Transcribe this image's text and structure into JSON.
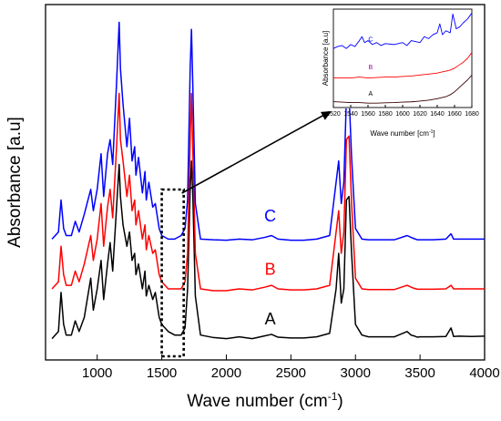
{
  "chart_data": [
    {
      "type": "line",
      "title": "",
      "xlabel": "Wave number (cm",
      "xlabel_sup": "-1",
      "xlabel_close": ")",
      "ylabel": "Absorbance [a.u]",
      "xlim": [
        600,
        4000
      ],
      "xticks": [
        1000,
        1500,
        2000,
        2500,
        3000,
        3500,
        4000
      ],
      "ylim": [
        0,
        1
      ],
      "grid": false,
      "legend": "none",
      "highlight_region_x": [
        1500,
        1670
      ],
      "series": [
        {
          "name": "A",
          "color": "#000000",
          "baseline": 0.055,
          "x": [
            650,
            700,
            720,
            740,
            760,
            800,
            830,
            860,
            900,
            950,
            970,
            1000,
            1030,
            1050,
            1080,
            1100,
            1120,
            1150,
            1170,
            1180,
            1200,
            1230,
            1250,
            1270,
            1290,
            1300,
            1320,
            1350,
            1370,
            1380,
            1400,
            1430,
            1450,
            1480,
            1500,
            1550,
            1600,
            1650,
            1680,
            1700,
            1720,
            1730,
            1740,
            1760,
            1800,
            1900,
            2000,
            2100,
            2200,
            2300,
            2350,
            2400,
            2500,
            2600,
            2700,
            2800,
            2850,
            2870,
            2890,
            2910,
            2930,
            2950,
            2970,
            3000,
            3050,
            3100,
            3200,
            3300,
            3400,
            3430,
            3450,
            3480,
            3500,
            3600,
            3700,
            3740,
            3760,
            3800,
            3900,
            4000
          ],
          "y": [
            0.06,
            0.08,
            0.19,
            0.1,
            0.07,
            0.07,
            0.11,
            0.08,
            0.12,
            0.23,
            0.14,
            0.2,
            0.28,
            0.17,
            0.27,
            0.33,
            0.25,
            0.43,
            0.55,
            0.46,
            0.38,
            0.32,
            0.36,
            0.28,
            0.3,
            0.24,
            0.27,
            0.2,
            0.25,
            0.18,
            0.21,
            0.17,
            0.19,
            0.12,
            0.1,
            0.08,
            0.07,
            0.07,
            0.09,
            0.2,
            0.48,
            0.56,
            0.47,
            0.18,
            0.07,
            0.063,
            0.06,
            0.065,
            0.06,
            0.068,
            0.072,
            0.064,
            0.062,
            0.062,
            0.065,
            0.075,
            0.2,
            0.3,
            0.16,
            0.2,
            0.45,
            0.46,
            0.3,
            0.1,
            0.07,
            0.065,
            0.065,
            0.065,
            0.08,
            0.07,
            0.068,
            0.064,
            0.065,
            0.065,
            0.066,
            0.09,
            0.066,
            0.067,
            0.066,
            0.067
          ]
        },
        {
          "name": "B",
          "color": "#ff0000",
          "baseline": 0.19,
          "x": [
            650,
            700,
            720,
            740,
            760,
            800,
            830,
            860,
            900,
            950,
            970,
            1000,
            1030,
            1050,
            1080,
            1100,
            1120,
            1150,
            1170,
            1180,
            1200,
            1230,
            1250,
            1270,
            1290,
            1300,
            1320,
            1350,
            1370,
            1380,
            1400,
            1430,
            1450,
            1480,
            1500,
            1550,
            1600,
            1650,
            1680,
            1700,
            1720,
            1730,
            1740,
            1760,
            1800,
            1900,
            2000,
            2100,
            2200,
            2300,
            2350,
            2400,
            2500,
            2600,
            2700,
            2800,
            2850,
            2870,
            2890,
            2910,
            2930,
            2950,
            2970,
            3000,
            3050,
            3100,
            3200,
            3300,
            3400,
            3430,
            3450,
            3480,
            3500,
            3600,
            3700,
            3740,
            3760,
            3800,
            3900,
            4000
          ],
          "y": [
            0.2,
            0.22,
            0.32,
            0.24,
            0.21,
            0.21,
            0.25,
            0.22,
            0.27,
            0.35,
            0.28,
            0.34,
            0.44,
            0.32,
            0.43,
            0.48,
            0.4,
            0.6,
            0.75,
            0.62,
            0.56,
            0.46,
            0.52,
            0.42,
            0.45,
            0.38,
            0.42,
            0.34,
            0.38,
            0.31,
            0.35,
            0.3,
            0.31,
            0.24,
            0.22,
            0.2,
            0.2,
            0.2,
            0.22,
            0.3,
            0.62,
            0.75,
            0.6,
            0.3,
            0.2,
            0.195,
            0.195,
            0.2,
            0.197,
            0.205,
            0.21,
            0.2,
            0.197,
            0.197,
            0.2,
            0.21,
            0.36,
            0.42,
            0.3,
            0.36,
            0.62,
            0.63,
            0.44,
            0.23,
            0.2,
            0.198,
            0.198,
            0.198,
            0.21,
            0.205,
            0.202,
            0.199,
            0.199,
            0.199,
            0.2,
            0.21,
            0.2,
            0.2,
            0.2,
            0.2
          ]
        },
        {
          "name": "C",
          "color": "#0000ff",
          "baseline": 0.33,
          "x": [
            650,
            700,
            720,
            740,
            760,
            800,
            830,
            860,
            900,
            950,
            970,
            1000,
            1030,
            1050,
            1080,
            1100,
            1120,
            1150,
            1170,
            1180,
            1200,
            1230,
            1250,
            1270,
            1290,
            1300,
            1320,
            1350,
            1370,
            1380,
            1400,
            1430,
            1450,
            1480,
            1500,
            1550,
            1600,
            1650,
            1680,
            1700,
            1720,
            1730,
            1740,
            1760,
            1800,
            1900,
            2000,
            2100,
            2200,
            2300,
            2350,
            2400,
            2500,
            2600,
            2700,
            2800,
            2850,
            2870,
            2890,
            2910,
            2930,
            2950,
            2970,
            3000,
            3050,
            3100,
            3200,
            3300,
            3400,
            3430,
            3450,
            3480,
            3500,
            3600,
            3700,
            3740,
            3760,
            3800,
            3900,
            4000
          ],
          "y": [
            0.34,
            0.36,
            0.45,
            0.37,
            0.35,
            0.35,
            0.39,
            0.36,
            0.41,
            0.48,
            0.42,
            0.48,
            0.58,
            0.46,
            0.58,
            0.62,
            0.55,
            0.78,
            0.95,
            0.82,
            0.72,
            0.6,
            0.68,
            0.56,
            0.6,
            0.52,
            0.57,
            0.47,
            0.53,
            0.45,
            0.5,
            0.43,
            0.44,
            0.37,
            0.35,
            0.34,
            0.34,
            0.35,
            0.37,
            0.45,
            0.82,
            0.93,
            0.78,
            0.44,
            0.34,
            0.338,
            0.337,
            0.34,
            0.338,
            0.345,
            0.35,
            0.34,
            0.337,
            0.337,
            0.34,
            0.35,
            0.5,
            0.56,
            0.44,
            0.5,
            0.74,
            0.75,
            0.57,
            0.37,
            0.34,
            0.338,
            0.338,
            0.338,
            0.35,
            0.345,
            0.342,
            0.338,
            0.338,
            0.338,
            0.34,
            0.355,
            0.34,
            0.34,
            0.34,
            0.34
          ]
        }
      ],
      "series_labels": [
        {
          "text": "A",
          "x": 2340,
          "y": 0.1,
          "color": "#000000"
        },
        {
          "text": "B",
          "x": 2340,
          "y": 0.24,
          "color": "#ff0000"
        },
        {
          "text": "C",
          "x": 2340,
          "y": 0.39,
          "color": "#0000ff"
        }
      ]
    },
    {
      "type": "line",
      "title": "",
      "xlabel": "Wave number [cm",
      "xlabel_sup": "-1",
      "xlabel_close": "]",
      "ylabel": "Absorbance [a.u]",
      "xlim": [
        1520,
        1680
      ],
      "xticks": [
        1520,
        1540,
        1560,
        1580,
        1600,
        1620,
        1640,
        1660,
        1680
      ],
      "ylim": [
        0,
        1
      ],
      "grid": false,
      "legend": "none",
      "series": [
        {
          "name": "A",
          "color": "#3a0000",
          "x": [
            1520,
            1530,
            1540,
            1550,
            1560,
            1570,
            1580,
            1590,
            1600,
            1610,
            1620,
            1630,
            1640,
            1650,
            1655,
            1660,
            1665,
            1670,
            1675,
            1680
          ],
          "y": [
            0.06,
            0.055,
            0.05,
            0.05,
            0.045,
            0.045,
            0.048,
            0.05,
            0.055,
            0.058,
            0.065,
            0.075,
            0.09,
            0.11,
            0.13,
            0.16,
            0.2,
            0.24,
            0.28,
            0.33
          ]
        },
        {
          "name": "B",
          "color": "#ff0000",
          "x": [
            1520,
            1530,
            1540,
            1550,
            1560,
            1570,
            1580,
            1590,
            1600,
            1610,
            1620,
            1630,
            1640,
            1645,
            1650,
            1655,
            1660,
            1665,
            1670,
            1675,
            1680
          ],
          "y": [
            0.3,
            0.3,
            0.3,
            0.31,
            0.3,
            0.305,
            0.31,
            0.31,
            0.315,
            0.32,
            0.33,
            0.34,
            0.35,
            0.36,
            0.37,
            0.38,
            0.4,
            0.43,
            0.46,
            0.5,
            0.56
          ]
        },
        {
          "name": "C",
          "color": "#0000ff",
          "x": [
            1520,
            1525,
            1530,
            1535,
            1540,
            1545,
            1550,
            1553,
            1556,
            1560,
            1565,
            1570,
            1575,
            1580,
            1590,
            1600,
            1605,
            1610,
            1620,
            1625,
            1630,
            1635,
            1640,
            1643,
            1646,
            1650,
            1655,
            1658,
            1662,
            1666,
            1670,
            1675,
            1680
          ],
          "y": [
            0.6,
            0.62,
            0.63,
            0.6,
            0.64,
            0.62,
            0.68,
            0.72,
            0.66,
            0.68,
            0.64,
            0.66,
            0.63,
            0.65,
            0.64,
            0.66,
            0.63,
            0.68,
            0.66,
            0.72,
            0.7,
            0.74,
            0.76,
            0.85,
            0.74,
            0.78,
            0.76,
            0.95,
            0.8,
            0.82,
            0.86,
            0.9,
            0.96
          ]
        }
      ],
      "series_labels": [
        {
          "text": "C",
          "x": 1563,
          "y": 0.67,
          "color": "#0000ff"
        },
        {
          "text": "B",
          "x": 1563,
          "y": 0.39,
          "color": "#a000a0"
        },
        {
          "text": "A",
          "x": 1563,
          "y": 0.12,
          "color": "#000000"
        }
      ]
    }
  ]
}
